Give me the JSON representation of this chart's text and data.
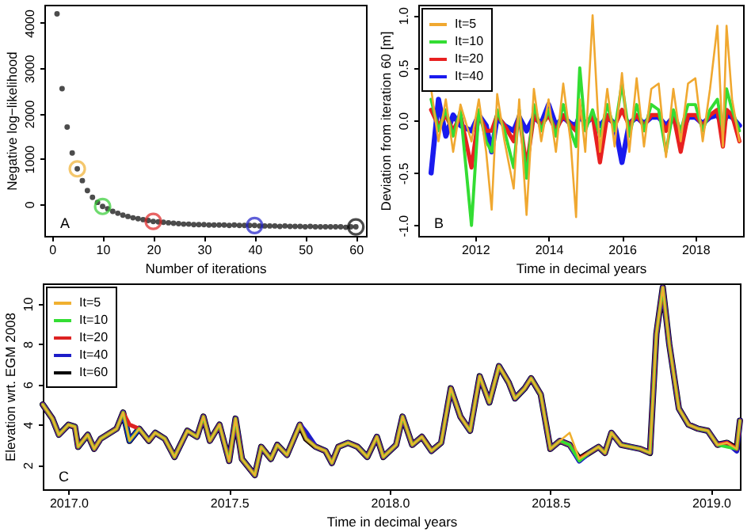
{
  "chart_data": [
    {
      "type": "scatter",
      "xlabel": "Number of iterations",
      "ylabel": "Negative log−likelihood",
      "xlim": [
        -1.5,
        62
      ],
      "ylim": [
        -700,
        4400
      ],
      "xticks": [
        0,
        10,
        20,
        30,
        40,
        50,
        60
      ],
      "yticks": [
        0,
        1000,
        2000,
        3000,
        4000
      ],
      "marker": "circle",
      "annotations": [
        "A"
      ],
      "x": [
        1,
        2,
        3,
        4,
        5,
        6,
        7,
        8,
        9,
        10,
        11,
        12,
        13,
        14,
        15,
        16,
        17,
        18,
        19,
        20,
        21,
        22,
        23,
        24,
        25,
        26,
        27,
        28,
        29,
        30,
        31,
        32,
        33,
        34,
        35,
        36,
        37,
        38,
        39,
        40,
        41,
        42,
        43,
        44,
        45,
        46,
        47,
        48,
        49,
        50,
        51,
        52,
        53,
        54,
        55,
        56,
        57,
        58,
        59,
        60
      ],
      "series": [
        {
          "color": "#000000",
          "values": [
            4200,
            2550,
            1700,
            1130,
            780,
            520,
            300,
            150,
            40,
            -50,
            -100,
            -160,
            -200,
            -240,
            -270,
            -300,
            -320,
            -340,
            -360,
            -380,
            -390,
            -400,
            -410,
            -420,
            -430,
            -440,
            -440,
            -450,
            -450,
            -450,
            -460,
            -460,
            -460,
            -460,
            -470,
            -460,
            -470,
            -470,
            -470,
            -470,
            -480,
            -480,
            -480,
            -480,
            -490,
            -480,
            -490,
            -490,
            -490,
            -500,
            -490,
            -500,
            -500,
            -500,
            -500,
            -500,
            -500,
            -510,
            -500,
            -500
          ]
        },
        {
          "x": [
            5,
            10,
            20,
            40,
            60
          ],
          "colors": [
            "#f0b030",
            "#33cc33",
            "#dd2222",
            "#1c1cc8",
            "#000000"
          ],
          "values": [
            780,
            -50,
            -380,
            -470,
            -500
          ]
        }
      ]
    },
    {
      "type": "line",
      "xlabel": "Time in decimal years",
      "ylabel": "Deviation from iteration 60 [m]",
      "xlim": [
        2010.45,
        2019.3
      ],
      "ylim": [
        -1.1,
        1.1
      ],
      "xticks": [
        2012,
        2014,
        2016,
        2018
      ],
      "yticks": [
        {
          "value": -1,
          "label": "-1.0"
        },
        -0.5,
        {
          "value": 0,
          "label": "0.0"
        },
        0.5,
        {
          "value": 1,
          "label": "1.0"
        }
      ],
      "legend": "top left",
      "annotations": [
        "B"
      ],
      "x": [
        2010.8,
        2011.0,
        2011.2,
        2011.4,
        2011.6,
        2011.9,
        2012.1,
        2012.3,
        2012.45,
        2012.6,
        2012.8,
        2013.05,
        2013.2,
        2013.4,
        2013.6,
        2013.8,
        2014.0,
        2014.2,
        2014.4,
        2014.6,
        2014.75,
        2014.85,
        2015.0,
        2015.2,
        2015.4,
        2015.6,
        2015.8,
        2016.0,
        2016.2,
        2016.4,
        2016.6,
        2016.8,
        2017.0,
        2017.2,
        2017.4,
        2017.6,
        2017.8,
        2018.0,
        2018.2,
        2018.4,
        2018.6,
        2018.75,
        2018.85,
        2019.0,
        2019.2
      ],
      "series": [
        {
          "name": "It=5",
          "color": "#f0a830",
          "values": [
            0.3,
            -0.2,
            0.2,
            -0.3,
            0.15,
            -0.2,
            0.2,
            -0.3,
            -0.85,
            0.25,
            -0.2,
            -0.65,
            0.2,
            -0.9,
            0.3,
            -0.2,
            0.2,
            -0.3,
            0.35,
            -0.2,
            -0.92,
            0.2,
            -0.3,
            1.0,
            -0.3,
            0.3,
            -0.25,
            0.45,
            -0.3,
            0.4,
            -0.25,
            0.3,
            0.35,
            -0.35,
            0.3,
            -0.2,
            0.35,
            0.4,
            -0.2,
            0.3,
            0.9,
            -0.25,
            0.9,
            0.2,
            -0.2
          ]
        },
        {
          "name": "It=10",
          "color": "#33dd33",
          "values": [
            0.2,
            -0.1,
            0.1,
            -0.15,
            0.1,
            -1.0,
            0.1,
            -0.2,
            -0.3,
            0.1,
            -0.1,
            -0.45,
            0.1,
            -0.55,
            0.15,
            -0.1,
            0.1,
            -0.15,
            0.15,
            -0.1,
            -0.25,
            0.5,
            -0.1,
            0.1,
            -0.15,
            0.15,
            -0.1,
            0.35,
            -0.15,
            0.15,
            -0.1,
            0.15,
            0.1,
            -0.3,
            0.1,
            -0.1,
            0.15,
            0.15,
            -0.1,
            0.1,
            0.2,
            -0.1,
            0.3,
            0.1,
            -0.1
          ]
        },
        {
          "name": "It=20",
          "color": "#e82020",
          "values": [
            0.1,
            -0.05,
            0.05,
            -0.1,
            0.05,
            -0.45,
            0.05,
            -0.1,
            -0.1,
            0.05,
            -0.05,
            -0.2,
            0.05,
            -0.45,
            0.05,
            -0.05,
            0.05,
            -0.1,
            0.05,
            -0.05,
            -0.1,
            0.1,
            -0.05,
            0.05,
            -0.4,
            0.05,
            -0.05,
            0.1,
            -0.05,
            0.05,
            -0.05,
            0.05,
            0.05,
            -0.1,
            0.05,
            -0.3,
            0.05,
            0.05,
            -0.05,
            0.05,
            0.1,
            -0.25,
            0.1,
            0.05,
            -0.2
          ]
        },
        {
          "name": "It=40",
          "color": "#1a1aee",
          "values": [
            -0.5,
            0.2,
            -0.15,
            0.05,
            -0.05,
            -0.1,
            0.05,
            -0.05,
            -0.3,
            0.03,
            -0.05,
            -0.1,
            0.03,
            -0.1,
            0.03,
            -0.03,
            0.15,
            -0.05,
            0.03,
            -0.03,
            -0.05,
            0.05,
            -0.03,
            0.03,
            -0.05,
            0.03,
            -0.03,
            -0.4,
            -0.03,
            0.03,
            -0.03,
            0.03,
            0.03,
            -0.05,
            0.03,
            -0.15,
            0.03,
            0.03,
            -0.03,
            0.03,
            0.05,
            -0.05,
            0.05,
            0.03,
            -0.05
          ]
        }
      ]
    },
    {
      "type": "line",
      "xlabel": "Time in decimal years",
      "ylabel": "Elevation wrt. EGM 2008",
      "xlim": [
        2016.92,
        2019.09
      ],
      "ylim": [
        0.8,
        11.0
      ],
      "xticks": [
        {
          "value": 2017,
          "label": "2017.0"
        },
        2017.5,
        {
          "value": 2018,
          "label": "2018.0"
        },
        2018.5,
        {
          "value": 2019,
          "label": "2019.0"
        }
      ],
      "yticks": [
        2,
        4,
        6,
        8,
        10
      ],
      "legend": "top left",
      "annotations": [
        "C"
      ],
      "x": [
        2016.92,
        2016.95,
        2016.97,
        2017.0,
        2017.02,
        2017.03,
        2017.06,
        2017.08,
        2017.1,
        2017.15,
        2017.17,
        2017.19,
        2017.22,
        2017.25,
        2017.27,
        2017.3,
        2017.33,
        2017.37,
        2017.4,
        2017.42,
        2017.44,
        2017.47,
        2017.5,
        2017.52,
        2017.54,
        2017.58,
        2017.6,
        2017.63,
        2017.65,
        2017.68,
        2017.72,
        2017.74,
        2017.77,
        2017.8,
        2017.82,
        2017.84,
        2017.87,
        2017.9,
        2017.93,
        2017.96,
        2017.98,
        2018.02,
        2018.04,
        2018.07,
        2018.1,
        2018.13,
        2018.16,
        2018.19,
        2018.22,
        2018.25,
        2018.28,
        2018.31,
        2018.34,
        2018.37,
        2018.39,
        2018.42,
        2018.44,
        2018.47,
        2018.5,
        2018.53,
        2018.56,
        2018.59,
        2018.62,
        2018.65,
        2018.67,
        2018.69,
        2018.72,
        2018.75,
        2018.78,
        2018.81,
        2018.83,
        2018.85,
        2018.87,
        2018.9,
        2018.93,
        2018.96,
        2018.99,
        2019.02,
        2019.05,
        2019.08,
        2019.09
      ],
      "series": [
        {
          "name": "It=5",
          "color": "#f0b030",
          "values": [
            5.0,
            4.3,
            3.5,
            4.0,
            3.9,
            2.9,
            3.5,
            2.8,
            3.3,
            3.8,
            4.6,
            3.2,
            3.8,
            3.2,
            3.6,
            3.3,
            2.4,
            3.7,
            3.4,
            4.4,
            3.2,
            4.0,
            2.2,
            4.3,
            2.3,
            1.5,
            2.9,
            2.3,
            3.0,
            2.5,
            4.0,
            3.3,
            2.9,
            2.7,
            2.1,
            2.9,
            3.1,
            2.9,
            2.4,
            3.4,
            2.4,
            3.0,
            4.4,
            3.0,
            3.4,
            2.7,
            3.1,
            5.8,
            4.4,
            3.7,
            6.4,
            5.1,
            6.9,
            6.1,
            5.3,
            5.8,
            6.3,
            5.5,
            2.8,
            3.2,
            3.6,
            2.3,
            2.6,
            2.9,
            2.6,
            3.6,
            3.0,
            2.9,
            2.8,
            2.6,
            8.5,
            10.8,
            8.0,
            4.8,
            4.0,
            3.8,
            3.7,
            3.0,
            3.1,
            2.8,
            4.2
          ]
        },
        {
          "name": "It=10",
          "color": "#33dd33",
          "values": [
            5.0,
            4.3,
            3.5,
            4.0,
            3.9,
            2.9,
            3.5,
            2.8,
            3.3,
            3.8,
            4.6,
            3.2,
            3.8,
            3.2,
            3.6,
            3.3,
            2.4,
            3.7,
            3.4,
            4.4,
            3.2,
            4.0,
            2.2,
            4.3,
            2.3,
            1.5,
            2.9,
            2.3,
            3.0,
            2.5,
            4.0,
            3.3,
            2.9,
            2.7,
            2.1,
            2.9,
            3.1,
            2.9,
            2.4,
            3.4,
            2.4,
            3.0,
            4.4,
            3.0,
            3.4,
            2.7,
            3.1,
            5.8,
            4.4,
            3.7,
            6.4,
            5.1,
            6.9,
            6.1,
            5.3,
            5.8,
            6.3,
            5.5,
            2.8,
            3.2,
            3.0,
            2.2,
            2.6,
            2.9,
            2.6,
            3.6,
            3.0,
            2.9,
            2.8,
            2.6,
            8.5,
            10.8,
            8.0,
            4.8,
            4.0,
            3.8,
            3.7,
            3.0,
            2.9,
            2.8,
            4.2
          ]
        },
        {
          "name": "It=20",
          "color": "#dd2222",
          "values": [
            5.0,
            4.3,
            3.5,
            4.0,
            3.9,
            2.9,
            3.5,
            2.8,
            3.3,
            3.8,
            4.6,
            4.0,
            3.8,
            3.2,
            3.6,
            3.3,
            2.4,
            3.7,
            3.4,
            4.4,
            3.2,
            4.0,
            2.2,
            4.3,
            2.3,
            1.5,
            2.9,
            2.3,
            3.0,
            2.5,
            4.0,
            3.3,
            2.9,
            2.7,
            2.1,
            2.9,
            3.1,
            2.9,
            2.4,
            3.4,
            2.4,
            3.0,
            4.4,
            3.0,
            3.4,
            2.7,
            3.1,
            5.8,
            4.4,
            3.7,
            6.4,
            5.1,
            6.9,
            6.1,
            5.3,
            5.8,
            6.3,
            5.5,
            2.8,
            3.2,
            3.0,
            2.3,
            2.6,
            2.9,
            2.6,
            3.6,
            3.0,
            2.9,
            2.8,
            2.6,
            8.5,
            10.8,
            8.0,
            4.8,
            4.0,
            3.8,
            3.7,
            3.0,
            3.1,
            2.8,
            4.2
          ]
        },
        {
          "name": "It=40",
          "color": "#1c1cc8",
          "values": [
            5.0,
            4.3,
            3.5,
            4.0,
            3.9,
            2.9,
            3.5,
            2.8,
            3.3,
            3.8,
            4.6,
            3.2,
            3.8,
            3.2,
            3.6,
            3.3,
            2.4,
            3.7,
            3.4,
            4.4,
            3.2,
            4.0,
            2.2,
            4.3,
            2.3,
            1.5,
            2.9,
            2.3,
            3.0,
            2.5,
            4.0,
            3.6,
            2.9,
            2.7,
            2.1,
            2.9,
            3.1,
            2.9,
            2.4,
            3.4,
            2.4,
            3.0,
            4.4,
            3.0,
            3.4,
            2.7,
            3.1,
            5.8,
            4.4,
            3.7,
            6.4,
            5.1,
            6.9,
            6.1,
            5.3,
            5.8,
            6.3,
            5.5,
            2.8,
            3.2,
            3.0,
            2.2,
            2.6,
            2.9,
            2.6,
            3.6,
            3.0,
            2.9,
            2.8,
            2.6,
            8.5,
            10.8,
            8.0,
            4.8,
            4.0,
            3.8,
            3.7,
            3.0,
            3.1,
            2.7,
            4.2
          ]
        },
        {
          "name": "It=60",
          "color": "#000000",
          "values": [
            5.0,
            4.3,
            3.5,
            4.0,
            3.9,
            2.9,
            3.5,
            2.8,
            3.3,
            3.8,
            4.6,
            3.2,
            3.8,
            3.2,
            3.6,
            3.3,
            2.4,
            3.7,
            3.4,
            4.4,
            3.2,
            4.0,
            2.2,
            4.3,
            2.3,
            1.5,
            2.9,
            2.3,
            3.0,
            2.5,
            4.0,
            3.3,
            2.9,
            2.7,
            2.1,
            2.9,
            3.1,
            2.9,
            2.4,
            3.4,
            2.4,
            3.0,
            4.4,
            3.0,
            3.4,
            2.7,
            3.1,
            5.8,
            4.4,
            3.7,
            6.4,
            5.1,
            6.9,
            6.1,
            5.3,
            5.8,
            6.3,
            5.5,
            2.8,
            3.2,
            3.0,
            2.3,
            2.6,
            2.9,
            2.6,
            3.6,
            3.0,
            2.9,
            2.8,
            2.6,
            8.5,
            10.8,
            8.0,
            4.8,
            4.0,
            3.8,
            3.7,
            3.0,
            3.1,
            2.8,
            4.2
          ]
        }
      ]
    }
  ]
}
